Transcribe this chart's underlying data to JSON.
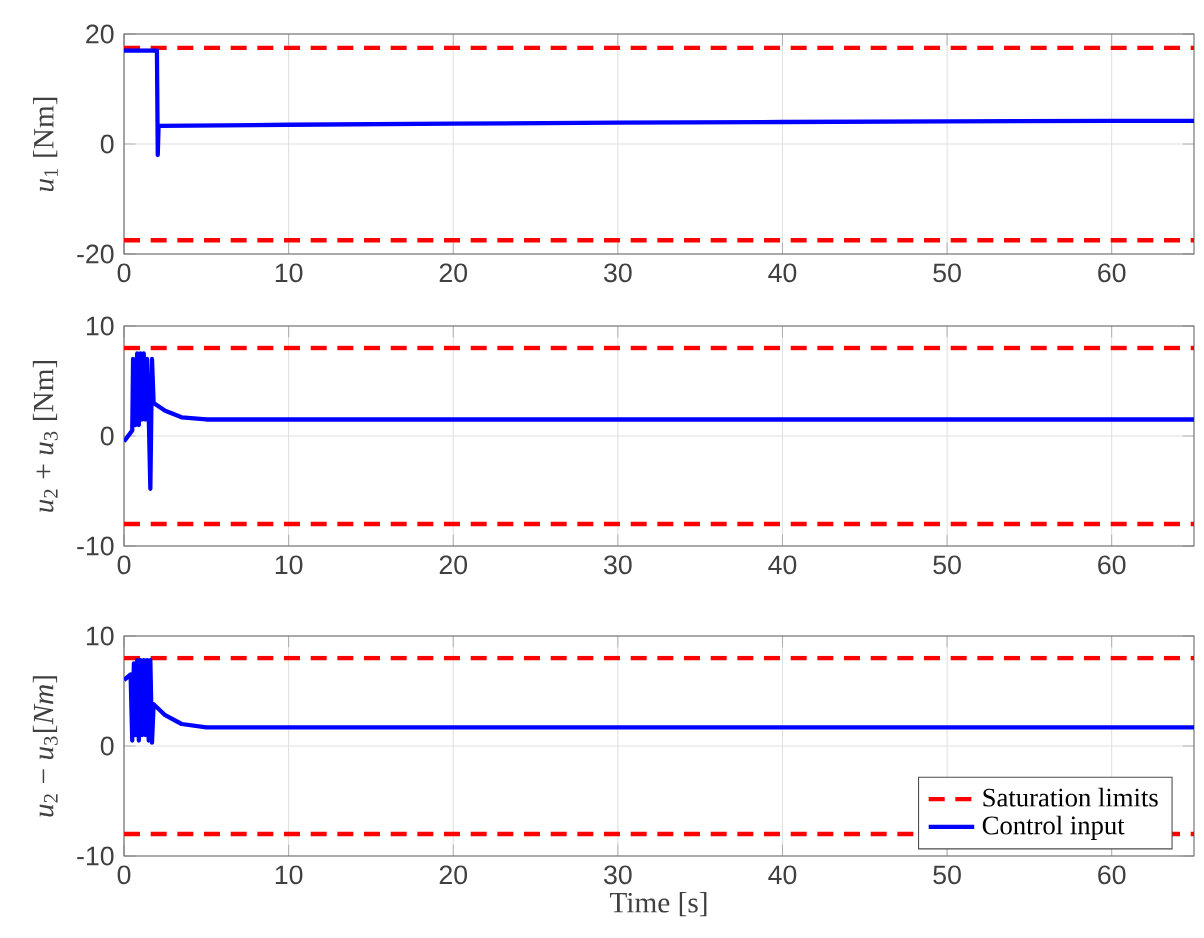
{
  "chart_data": [
    {
      "type": "line",
      "ylabel": "*u*$_{1}$ [Nm]",
      "xlim": [
        0,
        65
      ],
      "ylim": [
        -20,
        20
      ],
      "xticks": [
        0,
        10,
        20,
        30,
        40,
        50,
        60
      ],
      "yticks": [
        -20,
        0,
        20
      ],
      "grid": true,
      "series": [
        {
          "color": "#ff0000",
          "line_style": "dashed",
          "x": [
            0,
            65
          ],
          "values": [
            17.5,
            17.5
          ]
        },
        {
          "color": "#ff0000",
          "line_style": "dashed",
          "x": [
            0,
            65
          ],
          "values": [
            -17.5,
            -17.5
          ]
        },
        {
          "color": "#0000ff",
          "line_style": "solid",
          "x": [
            0,
            2,
            2.05,
            2.1,
            10,
            20,
            30,
            40,
            50,
            60,
            65
          ],
          "values": [
            17,
            17,
            -2,
            3.3,
            3.5,
            3.7,
            3.9,
            4.0,
            4.1,
            4.2,
            4.2
          ]
        }
      ]
    },
    {
      "type": "line",
      "ylabel": "*u*$_{2}$ + *u*$_{3}$ [Nm]",
      "xlim": [
        0,
        65
      ],
      "ylim": [
        -10,
        10
      ],
      "xticks": [
        0,
        10,
        20,
        30,
        40,
        50,
        60
      ],
      "yticks": [
        -10,
        0,
        10
      ],
      "grid": true,
      "series": [
        {
          "color": "#ff0000",
          "line_style": "dashed",
          "x": [
            0,
            65
          ],
          "values": [
            8,
            8
          ]
        },
        {
          "color": "#ff0000",
          "line_style": "dashed",
          "x": [
            0,
            65
          ],
          "values": [
            -8,
            -8
          ]
        },
        {
          "color": "#0000ff",
          "line_style": "solid",
          "x": [
            0,
            0.5,
            0.55,
            0.7,
            0.8,
            0.9,
            1.0,
            1.1,
            1.2,
            1.3,
            1.4,
            1.5,
            1.6,
            1.7,
            1.8,
            2.5,
            3.5,
            5,
            10,
            65
          ],
          "values": [
            -0.5,
            0.5,
            7,
            1,
            7.5,
            1,
            7.5,
            1.5,
            7.5,
            1.5,
            7,
            2,
            -4.8,
            7,
            3,
            2.3,
            1.7,
            1.5,
            1.5,
            1.5
          ]
        }
      ]
    },
    {
      "type": "line",
      "ylabel": "*u*$_{2}$ − *u*$_{3}$[*Nm*]",
      "xlabel": "Time [s]",
      "xlim": [
        0,
        65
      ],
      "ylim": [
        -10,
        10
      ],
      "xticks": [
        0,
        10,
        20,
        30,
        40,
        50,
        60
      ],
      "yticks": [
        -10,
        0,
        10
      ],
      "grid": true,
      "legend": "bottom right",
      "series": [
        {
          "name": "Saturation limits",
          "color": "#ff0000",
          "line_style": "dashed",
          "x": [
            0,
            65
          ],
          "values": [
            8,
            8
          ]
        },
        {
          "color": "#ff0000",
          "line_style": "dashed",
          "x": [
            0,
            65
          ],
          "values": [
            -8,
            -8
          ]
        },
        {
          "name": "Control input",
          "color": "#0000ff",
          "line_style": "solid",
          "x": [
            0,
            0.4,
            0.5,
            0.6,
            0.7,
            0.8,
            0.9,
            1.0,
            1.1,
            1.2,
            1.3,
            1.4,
            1.5,
            1.6,
            1.7,
            1.8,
            2.5,
            3.5,
            5,
            10,
            65
          ],
          "values": [
            6,
            6.5,
            0.5,
            7.5,
            1,
            7.8,
            0.5,
            7.8,
            1,
            7.8,
            1,
            7.8,
            0.5,
            7.8,
            0.3,
            3.8,
            2.8,
            2,
            1.7,
            1.7,
            1.7
          ]
        }
      ]
    }
  ]
}
